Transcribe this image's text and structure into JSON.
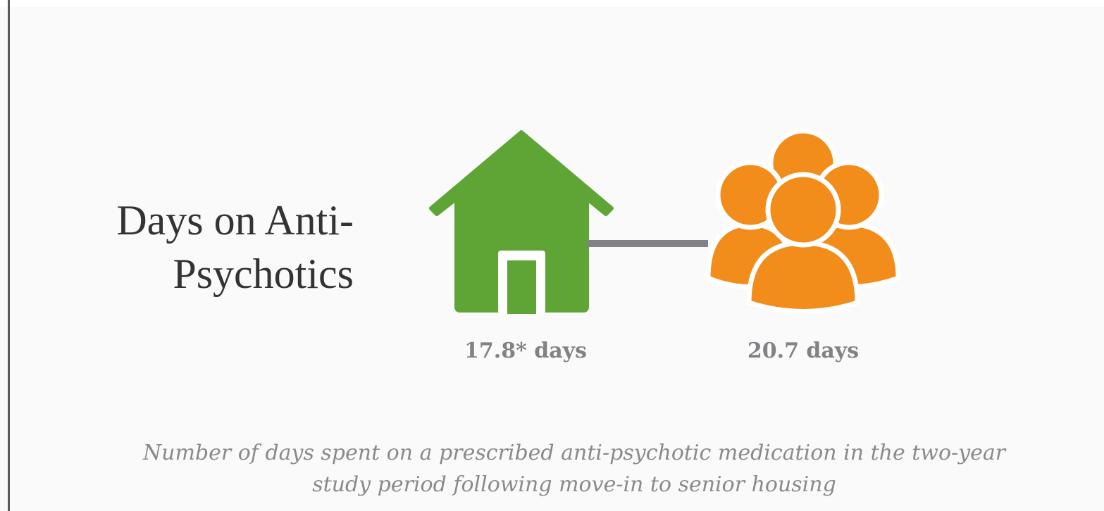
{
  "title_lines": [
    "Days on Anti-",
    "Psychotics"
  ],
  "items": [
    {
      "label": "17.8* days"
    },
    {
      "label": "20.7 days"
    }
  ],
  "caption_lines": [
    "Number of days spent on a prescribed anti-psychotic medication in the two-year",
    "study period following move-in to senior housing"
  ]
}
